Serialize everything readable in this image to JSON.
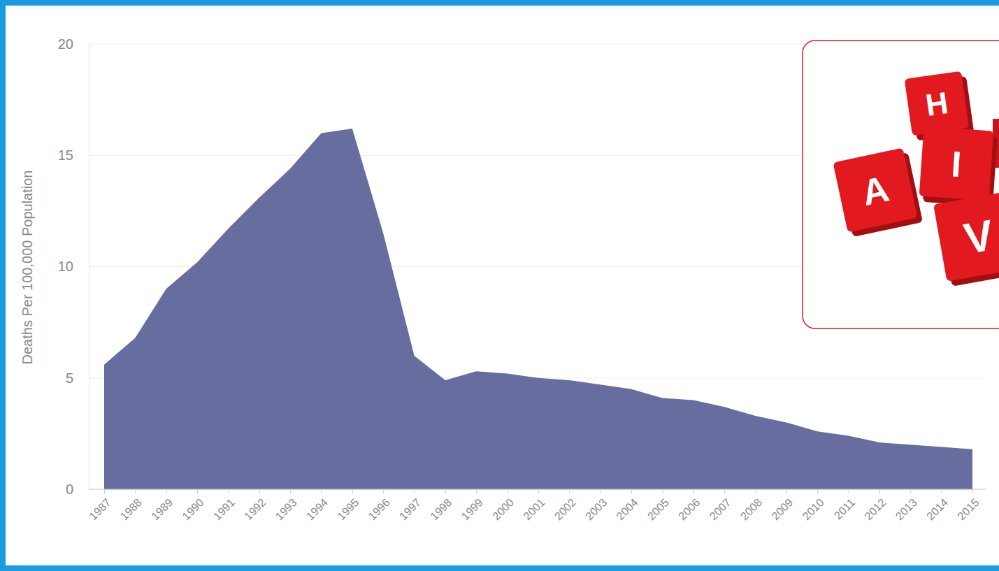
{
  "chart_data": {
    "type": "area",
    "y_label": "Deaths Per 100,000 Population",
    "x": [
      1987,
      1988,
      1989,
      1990,
      1991,
      1992,
      1993,
      1994,
      1995,
      1996,
      1997,
      1998,
      1999,
      2000,
      2001,
      2002,
      2003,
      2004,
      2005,
      2006,
      2007,
      2008,
      2009,
      2010,
      2011,
      2012,
      2013,
      2014,
      2015
    ],
    "values": [
      5.6,
      6.8,
      9.0,
      10.2,
      11.7,
      13.1,
      14.4,
      16.0,
      16.2,
      11.5,
      6.0,
      4.9,
      5.3,
      5.2,
      5.0,
      4.9,
      4.7,
      4.5,
      4.1,
      4.0,
      3.7,
      3.3,
      3.0,
      2.6,
      2.4,
      2.1,
      2.0,
      1.9,
      1.8
    ],
    "color": "#676d9e",
    "xlim": [
      1987,
      2015
    ],
    "xticks": [
      1987,
      1988,
      1989,
      1990,
      1991,
      1992,
      1993,
      1994,
      1995,
      1996,
      1997,
      1998,
      1999,
      2000,
      2001,
      2002,
      2003,
      2004,
      2005,
      2006,
      2007,
      2008,
      2009,
      2010,
      2011,
      2012,
      2013,
      2014,
      2015
    ],
    "ylim": [
      0,
      20
    ],
    "yticks": [
      0,
      5,
      10,
      15,
      20
    ],
    "grid": true,
    "annotations": [
      "H",
      "A",
      "I",
      "V"
    ]
  }
}
